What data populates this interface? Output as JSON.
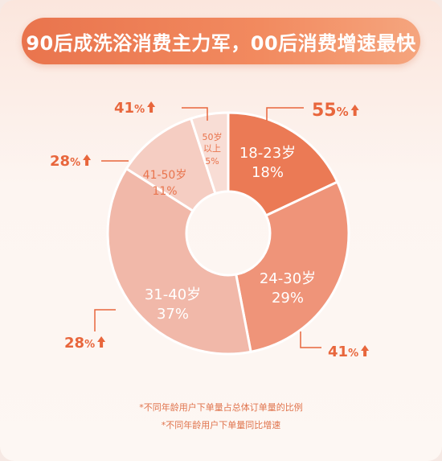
{
  "title": "90后成洗浴消费主力军，00后消费增速最快",
  "chart_data": {
    "type": "pie",
    "slices": [
      {
        "label": "18-23岁",
        "value": 18,
        "value_label": "18%",
        "growth": "55%",
        "color": "#eb7a55"
      },
      {
        "label": "24-30岁",
        "value": 29,
        "value_label": "29%",
        "growth": "41%",
        "color": "#ef9479"
      },
      {
        "label": "31-40岁",
        "value": 37,
        "value_label": "37%",
        "growth": "28%",
        "color": "#f1b8a9"
      },
      {
        "label": "41-50岁",
        "value": 11,
        "value_label": "11%",
        "growth": "28%",
        "color": "#f5cdc2"
      },
      {
        "label": "50岁以上",
        "value": 5,
        "value_label": "5%",
        "growth": "41%",
        "color": "#f8ddd5"
      }
    ],
    "growth_unit": "%"
  },
  "colors": {
    "accent": "#e9744d",
    "growth_text": "#e8663c",
    "slice_text_dark": "#e9744d",
    "slice_text_light": "#ffffff"
  },
  "footnotes": [
    "*不同年龄用户下单量占总体订单量的比例",
    "*不同年龄用户下单量同比增速"
  ]
}
